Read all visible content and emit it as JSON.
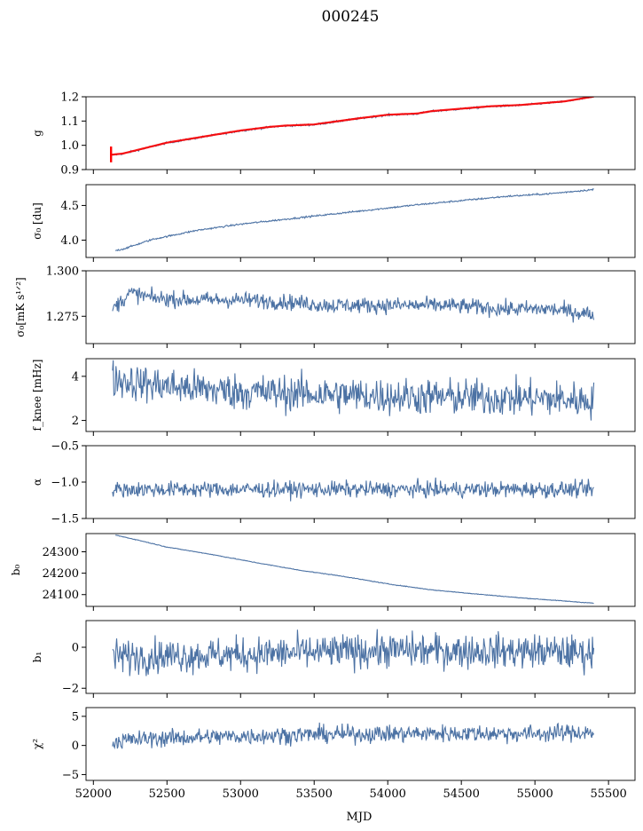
{
  "title": "000245",
  "xlabel": "MJD",
  "xlim": [
    51950,
    55680
  ],
  "xticks": [
    52000,
    52500,
    53000,
    53500,
    54000,
    54500,
    55000,
    55500
  ],
  "colors": {
    "series": "#4c72a4",
    "fit": "#ff0000",
    "axis": "#000000"
  },
  "chart_data": [
    {
      "type": "line",
      "id": "g",
      "ylabel": "g",
      "ylim": [
        0.9,
        1.2
      ],
      "yticks": [
        "0.9",
        "1.0",
        "1.1",
        "1.2"
      ],
      "noise": 0.002,
      "overlay": "red-line",
      "x": [
        52120,
        52200,
        52300,
        52500,
        52700,
        53000,
        53200,
        53300,
        53500,
        53800,
        54000,
        54200,
        54300,
        54500,
        54700,
        54900,
        55100,
        55200,
        55300,
        55400
      ],
      "y": [
        0.96,
        0.965,
        0.98,
        1.01,
        1.03,
        1.06,
        1.075,
        1.08,
        1.085,
        1.11,
        1.125,
        1.13,
        1.14,
        1.15,
        1.16,
        1.165,
        1.175,
        1.18,
        1.19,
        1.2
      ]
    },
    {
      "type": "line",
      "id": "sigma0",
      "ylabel": "σ₀ [du]",
      "ylim": [
        3.75,
        4.8
      ],
      "yticks": [
        "4.0",
        "4.5"
      ],
      "noise": 0.006,
      "x": [
        52150,
        52200,
        52400,
        52700,
        53000,
        53300,
        53600,
        53900,
        54200,
        54500,
        54800,
        55100,
        55400
      ],
      "y": [
        3.85,
        3.87,
        4.01,
        4.14,
        4.23,
        4.3,
        4.37,
        4.44,
        4.51,
        4.57,
        4.63,
        4.67,
        4.73
      ]
    },
    {
      "type": "line",
      "id": "sigma0_rate",
      "ylabel": "σ₀[mK s¹ᐟ²]",
      "ylim": [
        1.26,
        1.3
      ],
      "yticks": [
        "1.275",
        "1.300"
      ],
      "noise": 0.0022,
      "x": [
        52130,
        52250,
        52400,
        52700,
        53000,
        53300,
        53600,
        54000,
        54400,
        54800,
        55100,
        55400
      ],
      "y": [
        1.279,
        1.288,
        1.285,
        1.284,
        1.284,
        1.283,
        1.281,
        1.281,
        1.281,
        1.279,
        1.279,
        1.276
      ]
    },
    {
      "type": "line",
      "id": "fknee",
      "ylabel": "f_knee [mHz]",
      "ylim": [
        1.5,
        4.8
      ],
      "yticks": [
        "2",
        "4"
      ],
      "noise": 0.42,
      "x": [
        52130,
        52300,
        52600,
        53000,
        53500,
        54000,
        54500,
        55000,
        55400
      ],
      "y": [
        3.9,
        3.7,
        3.5,
        3.3,
        3.2,
        3.1,
        3.05,
        3.0,
        2.9
      ]
    },
    {
      "type": "line",
      "id": "alpha",
      "ylabel": "α",
      "ylim": [
        -1.5,
        -0.5
      ],
      "yticks": [
        "−1.5",
        "−1.0",
        "−0.5"
      ],
      "noise": 0.055,
      "x": [
        52130,
        53000,
        54000,
        55000,
        55400
      ],
      "y": [
        -1.1,
        -1.1,
        -1.1,
        -1.1,
        -1.1
      ]
    },
    {
      "type": "line",
      "id": "b0",
      "ylabel": "b₀",
      "ylim": [
        24045,
        24385
      ],
      "yticks": [
        "24100",
        "24200",
        "24300"
      ],
      "noise": 0.8,
      "x": [
        52150,
        52300,
        52500,
        52800,
        53100,
        53400,
        53700,
        54000,
        54300,
        54600,
        54900,
        55200,
        55400
      ],
      "y": [
        24378,
        24355,
        24322,
        24288,
        24250,
        24214,
        24185,
        24150,
        24122,
        24103,
        24085,
        24070,
        24060
      ]
    },
    {
      "type": "line",
      "id": "b1",
      "ylabel": "b₁",
      "ylim": [
        -2.25,
        1.3
      ],
      "yticks": [
        "−2",
        "0"
      ],
      "noise": 0.42,
      "x": [
        52130,
        53000,
        54000,
        55000,
        55400
      ],
      "y": [
        -0.45,
        -0.35,
        -0.15,
        -0.2,
        -0.3
      ]
    },
    {
      "type": "line",
      "id": "chi2",
      "ylabel": "χ²",
      "ylim": [
        -6,
        6.5
      ],
      "yticks": [
        "−5",
        "0",
        "5"
      ],
      "noise": 0.75,
      "x": [
        52130,
        52400,
        53000,
        53500,
        54000,
        54500,
        55000,
        55400
      ],
      "y": [
        0.7,
        1.2,
        1.6,
        1.9,
        2.0,
        2.1,
        2.0,
        2.3
      ]
    }
  ]
}
